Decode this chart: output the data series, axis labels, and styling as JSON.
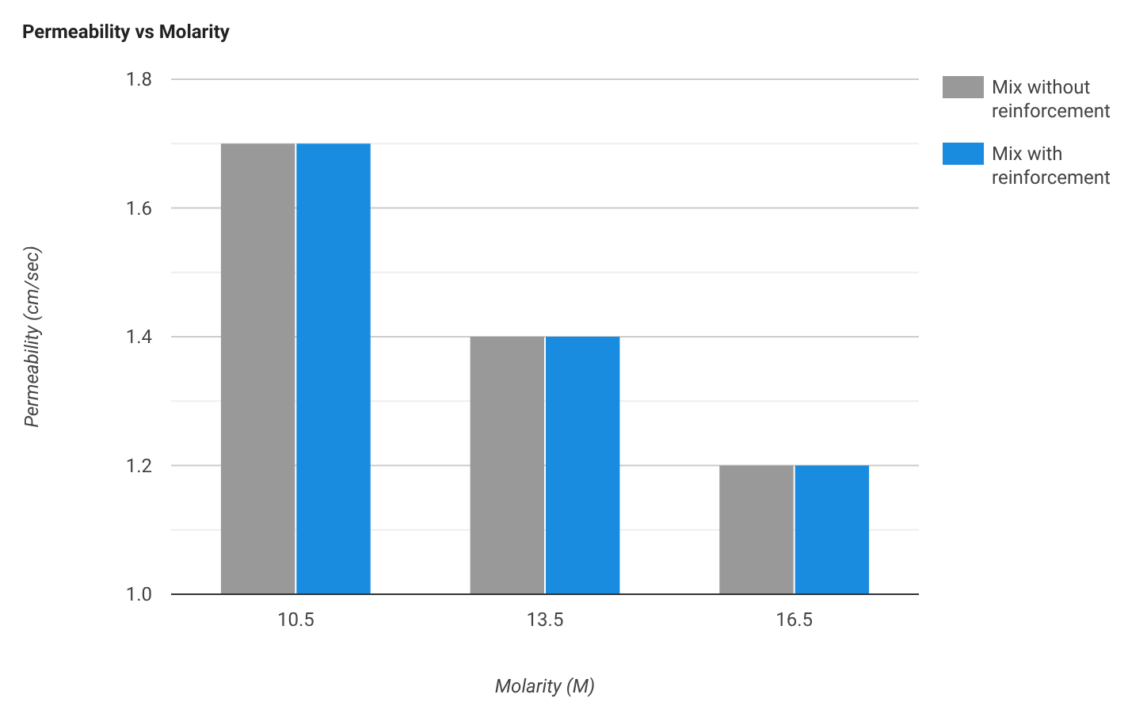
{
  "chart_data": {
    "type": "bar",
    "title": "Permeability vs Molarity",
    "xlabel": "Molarity (M)",
    "ylabel": "Permeability (cm/sec)",
    "categories": [
      "10.5",
      "13.5",
      "16.5"
    ],
    "series": [
      {
        "name": "Mix without reinforcement",
        "color": "#999999",
        "values": [
          1.7,
          1.4,
          1.2
        ]
      },
      {
        "name": "Mix with reinforcement",
        "color": "#1a8ce0",
        "values": [
          1.7,
          1.4,
          1.2
        ]
      }
    ],
    "ylim": [
      1.0,
      1.8
    ],
    "yticks": [
      {
        "value": 1.0,
        "label": "1.0"
      },
      {
        "value": 1.1,
        "label": null
      },
      {
        "value": 1.2,
        "label": "1.2"
      },
      {
        "value": 1.3,
        "label": null
      },
      {
        "value": 1.4,
        "label": "1.4"
      },
      {
        "value": 1.5,
        "label": null
      },
      {
        "value": 1.6,
        "label": "1.6"
      },
      {
        "value": 1.7,
        "label": null
      },
      {
        "value": 1.8,
        "label": "1.8"
      }
    ],
    "grid": "y",
    "legend": "right"
  }
}
